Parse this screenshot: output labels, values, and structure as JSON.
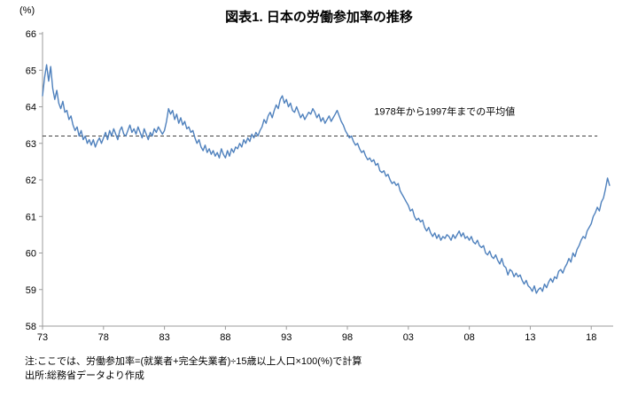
{
  "notes": [
    "注:ここでは、労働参加率=(就業者+完全失業者)÷15歳以上人口×100(%)で計算",
    "出所:総務省データより作成"
  ],
  "chart_data": {
    "type": "line",
    "title": "図表1. 日本の労働参加率の推移",
    "y_unit_label": "(%)",
    "xlabel": "",
    "ylabel": "(%)",
    "ylim": [
      58,
      66
    ],
    "xlim": [
      1973,
      2019.8
    ],
    "grid": false,
    "legend": "none",
    "y_ticks": [
      58,
      59,
      60,
      61,
      62,
      63,
      64,
      65,
      66
    ],
    "x_ticks": [
      {
        "year": 1973,
        "label": "73"
      },
      {
        "year": 1978,
        "label": "78"
      },
      {
        "year": 1983,
        "label": "83"
      },
      {
        "year": 1988,
        "label": "88"
      },
      {
        "year": 1993,
        "label": "93"
      },
      {
        "year": 1998,
        "label": "98"
      },
      {
        "year": 2003,
        "label": "03"
      },
      {
        "year": 2008,
        "label": "08"
      },
      {
        "year": 2013,
        "label": "13"
      },
      {
        "year": 2018,
        "label": "18"
      }
    ],
    "reference_line": {
      "value": 63.2,
      "x_start": 1973,
      "x_end": 2018.5,
      "label": "1978年から1997年までの平均値",
      "label_x": 2000.2,
      "label_y": 63.78,
      "color": "#404040"
    },
    "series": [
      {
        "name": "労働参加率",
        "color": "#4f81bd",
        "start_year": 1973,
        "points_per_year": 6,
        "values": [
          64.3,
          64.8,
          65.15,
          64.7,
          65.1,
          64.5,
          64.2,
          64.45,
          64.1,
          63.95,
          64.15,
          63.85,
          63.9,
          63.65,
          63.75,
          63.5,
          63.35,
          63.45,
          63.2,
          63.35,
          63.1,
          63.2,
          63.0,
          63.1,
          62.95,
          63.1,
          62.9,
          63.05,
          63.15,
          63.0,
          63.15,
          63.3,
          63.1,
          63.35,
          63.2,
          63.4,
          63.25,
          63.1,
          63.35,
          63.45,
          63.25,
          63.2,
          63.35,
          63.5,
          63.3,
          63.4,
          63.25,
          63.45,
          63.3,
          63.15,
          63.4,
          63.25,
          63.1,
          63.3,
          63.2,
          63.4,
          63.3,
          63.45,
          63.35,
          63.25,
          63.35,
          63.6,
          63.95,
          63.8,
          63.9,
          63.65,
          63.8,
          63.55,
          63.7,
          63.5,
          63.6,
          63.4,
          63.45,
          63.3,
          63.35,
          63.15,
          63.0,
          63.1,
          62.9,
          62.8,
          62.95,
          62.75,
          62.85,
          62.7,
          62.8,
          62.65,
          62.75,
          62.6,
          62.85,
          62.7,
          62.6,
          62.8,
          62.65,
          62.85,
          62.75,
          62.9,
          62.85,
          63.0,
          62.9,
          63.1,
          63.0,
          63.15,
          63.05,
          63.25,
          63.15,
          63.3,
          63.2,
          63.35,
          63.45,
          63.65,
          63.55,
          63.75,
          63.85,
          63.7,
          63.9,
          64.05,
          63.95,
          64.2,
          64.3,
          64.1,
          64.2,
          64.0,
          64.1,
          63.9,
          63.85,
          64.0,
          63.85,
          63.7,
          63.8,
          63.65,
          63.75,
          63.85,
          63.8,
          63.95,
          63.85,
          63.7,
          63.8,
          63.6,
          63.7,
          63.55,
          63.65,
          63.75,
          63.6,
          63.7,
          63.8,
          63.9,
          63.75,
          63.6,
          63.5,
          63.35,
          63.25,
          63.15,
          63.2,
          63.05,
          62.95,
          63.0,
          62.85,
          62.75,
          62.8,
          62.65,
          62.55,
          62.6,
          62.5,
          62.55,
          62.4,
          62.45,
          62.25,
          62.2,
          62.25,
          62.1,
          62.15,
          62.0,
          61.9,
          61.95,
          61.85,
          61.9,
          61.7,
          61.6,
          61.5,
          61.4,
          61.3,
          61.15,
          61.2,
          61.0,
          60.9,
          60.95,
          60.85,
          60.9,
          60.7,
          60.6,
          60.7,
          60.55,
          60.45,
          60.55,
          60.4,
          60.5,
          60.35,
          60.45,
          60.4,
          60.5,
          60.45,
          60.35,
          60.5,
          60.4,
          60.5,
          60.6,
          60.45,
          60.55,
          60.4,
          60.45,
          60.35,
          60.45,
          60.3,
          60.25,
          60.35,
          60.2,
          60.15,
          60.2,
          60.0,
          59.95,
          60.05,
          59.9,
          59.85,
          59.95,
          59.8,
          59.7,
          59.85,
          59.65,
          59.6,
          59.4,
          59.55,
          59.5,
          59.35,
          59.45,
          59.35,
          59.4,
          59.25,
          59.15,
          59.25,
          59.1,
          59.05,
          58.95,
          59.1,
          58.9,
          59.0,
          59.05,
          58.95,
          59.15,
          59.05,
          59.2,
          59.3,
          59.2,
          59.35,
          59.3,
          59.5,
          59.55,
          59.45,
          59.6,
          59.7,
          59.85,
          59.75,
          60.0,
          59.9,
          60.1,
          60.2,
          60.35,
          60.45,
          60.4,
          60.6,
          60.7,
          60.8,
          61.0,
          61.1,
          61.25,
          61.15,
          61.4,
          61.5,
          61.75,
          62.05,
          61.85
        ]
      }
    ]
  }
}
